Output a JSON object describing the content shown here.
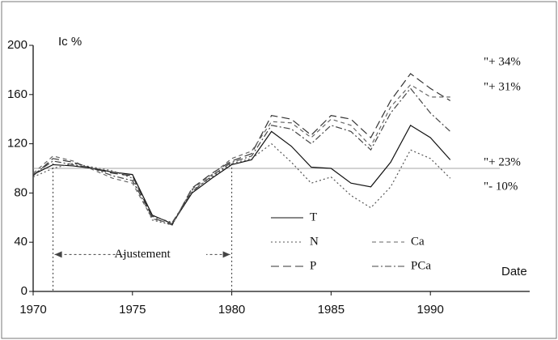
{
  "chart_data": {
    "type": "line",
    "y_label": "Ic %",
    "x_label": "Date",
    "x": [
      1970,
      1971,
      1972,
      1973,
      1974,
      1975,
      1976,
      1977,
      1978,
      1979,
      1980,
      1981,
      1982,
      1983,
      1984,
      1985,
      1986,
      1987,
      1988,
      1989,
      1990,
      1991
    ],
    "series": [
      {
        "name": "T",
        "color": "#111",
        "dash": "none",
        "values": [
          95,
          103,
          102,
          100,
          97,
          95,
          62,
          55,
          80,
          92,
          103,
          107,
          130,
          118,
          101,
          100,
          88,
          85,
          105,
          135,
          125,
          107
        ]
      },
      {
        "name": "N",
        "color": "#555",
        "dash": "2 3",
        "values": [
          93,
          100,
          104,
          101,
          98,
          92,
          58,
          54,
          82,
          93,
          104,
          108,
          120,
          105,
          88,
          93,
          78,
          68,
          85,
          115,
          108,
          92
        ]
      },
      {
        "name": "P",
        "color": "#333",
        "dash": "10 5",
        "values": [
          94,
          108,
          105,
          100,
          96,
          94,
          60,
          54,
          84,
          96,
          106,
          112,
          143,
          140,
          127,
          143,
          140,
          125,
          155,
          177,
          165,
          155
        ]
      },
      {
        "name": "Ca",
        "color": "#666",
        "dash": "5 4",
        "values": [
          96,
          110,
          106,
          99,
          92,
          88,
          59,
          55,
          83,
          95,
          108,
          114,
          138,
          137,
          125,
          140,
          135,
          118,
          150,
          168,
          158,
          158
        ]
      },
      {
        "name": "PCa",
        "color": "#444",
        "dash": "8 3 2 3",
        "values": [
          95,
          106,
          103,
          100,
          94,
          90,
          61,
          56,
          81,
          94,
          105,
          110,
          135,
          132,
          120,
          135,
          130,
          115,
          145,
          165,
          145,
          130
        ]
      }
    ],
    "annotations": [
      "\"+ 34%",
      "\"+ 31%",
      "\"+ 23%",
      "\"- 10%",
      "Ajustement"
    ],
    "reference_value": 100,
    "adjustment_period": [
      1971,
      1980
    ],
    "xlim": [
      1970,
      1995
    ],
    "xticks": [
      1970,
      1975,
      1980,
      1985,
      1990
    ],
    "ylim": [
      0,
      200
    ],
    "yticks": [
      0,
      40,
      80,
      120,
      160,
      200
    ]
  }
}
